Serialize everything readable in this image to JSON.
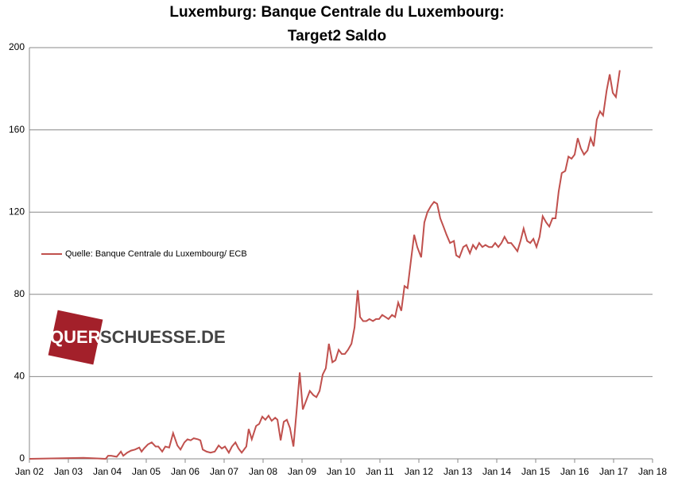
{
  "chart_data": {
    "type": "line",
    "title": "Luxemburg: Banque Centrale du Luxembourg:",
    "subtitle": "Target2 Saldo",
    "watermark": [
      "QUER",
      "SCHUESSE.DE"
    ],
    "xlim": [
      2002,
      2018
    ],
    "xticks": [
      {
        "value": 2002,
        "label": "Jan 02"
      },
      {
        "value": 2003,
        "label": "Jan 03"
      },
      {
        "value": 2004,
        "label": "Jan 04"
      },
      {
        "value": 2005,
        "label": "Jan 05"
      },
      {
        "value": 2006,
        "label": "Jan 06"
      },
      {
        "value": 2007,
        "label": "Jan 07"
      },
      {
        "value": 2008,
        "label": "Jan 08"
      },
      {
        "value": 2009,
        "label": "Jan 09"
      },
      {
        "value": 2010,
        "label": "Jan 10"
      },
      {
        "value": 2011,
        "label": "Jan 11"
      },
      {
        "value": 2012,
        "label": "Jan 12"
      },
      {
        "value": 2013,
        "label": "Jan 13"
      },
      {
        "value": 2014,
        "label": "Jan 14"
      },
      {
        "value": 2015,
        "label": "Jan 15"
      },
      {
        "value": 2016,
        "label": "Jan 16"
      },
      {
        "value": 2017,
        "label": "Jan 17"
      },
      {
        "value": 2018,
        "label": "Jan 18"
      }
    ],
    "ylim": [
      0,
      200
    ],
    "yticks": [
      0,
      40,
      80,
      120,
      160,
      200
    ],
    "grid": true,
    "legend": "left",
    "x": [
      2002.0,
      2003.39,
      2003.96,
      2004.02,
      2004.1,
      2004.24,
      2004.35,
      2004.41,
      2004.51,
      2004.61,
      2004.71,
      2004.82,
      2004.88,
      2004.94,
      2005.04,
      2005.14,
      2005.24,
      2005.31,
      2005.41,
      2005.49,
      2005.59,
      2005.69,
      2005.8,
      2005.88,
      2005.98,
      2006.06,
      2006.14,
      2006.22,
      2006.33,
      2006.39,
      2006.45,
      2006.55,
      2006.65,
      2006.76,
      2006.86,
      2006.94,
      2007.02,
      2007.12,
      2007.2,
      2007.29,
      2007.37,
      2007.45,
      2007.57,
      2007.63,
      2007.71,
      2007.82,
      2007.9,
      2007.98,
      2008.06,
      2008.14,
      2008.22,
      2008.31,
      2008.37,
      2008.45,
      2008.53,
      2008.61,
      2008.69,
      2008.78,
      2008.86,
      2008.94,
      2009.02,
      2009.1,
      2009.2,
      2009.29,
      2009.37,
      2009.45,
      2009.53,
      2009.61,
      2009.69,
      2009.78,
      2009.86,
      2009.94,
      2010.02,
      2010.1,
      2010.18,
      2010.27,
      2010.35,
      2010.43,
      2010.49,
      2010.57,
      2010.65,
      2010.73,
      2010.82,
      2010.9,
      2010.98,
      2011.06,
      2011.14,
      2011.22,
      2011.31,
      2011.39,
      2011.47,
      2011.55,
      2011.63,
      2011.71,
      2011.8,
      2011.88,
      2011.96,
      2012.06,
      2012.14,
      2012.22,
      2012.31,
      2012.39,
      2012.47,
      2012.55,
      2012.63,
      2012.71,
      2012.8,
      2012.9,
      2012.96,
      2013.04,
      2013.14,
      2013.22,
      2013.31,
      2013.39,
      2013.47,
      2013.55,
      2013.63,
      2013.71,
      2013.8,
      2013.88,
      2013.96,
      2014.04,
      2014.12,
      2014.2,
      2014.29,
      2014.37,
      2014.45,
      2014.53,
      2014.61,
      2014.69,
      2014.78,
      2014.86,
      2014.94,
      2015.02,
      2015.1,
      2015.18,
      2015.27,
      2015.35,
      2015.43,
      2015.51,
      2015.59,
      2015.67,
      2015.76,
      2015.84,
      2015.92,
      2016.0,
      2016.08,
      2016.16,
      2016.24,
      2016.33,
      2016.41,
      2016.49,
      2016.57,
      2016.65,
      2016.73,
      2016.82,
      2016.9,
      2016.98,
      2017.06,
      2017.16
    ],
    "series": [
      {
        "name": "Quelle: Banque Centrale du Luxembourg/ ECB",
        "color": "#c0504d",
        "values": [
          0,
          0.5,
          0,
          1.5,
          1.5,
          1,
          3.5,
          1.5,
          3,
          4,
          4.5,
          5.5,
          3.5,
          5,
          7,
          8,
          6,
          6,
          3.5,
          6,
          5.5,
          12.5,
          6.5,
          4.5,
          8,
          9.5,
          9,
          10,
          9.5,
          9,
          4.5,
          3.5,
          3,
          3.5,
          6.5,
          5,
          6,
          3,
          6,
          8,
          5,
          3,
          6,
          14.5,
          9.5,
          16,
          17,
          20.5,
          19,
          21,
          18.5,
          20,
          19,
          9,
          18,
          19,
          15,
          6,
          23,
          42,
          24,
          28,
          33,
          31,
          30,
          33,
          41,
          44,
          56,
          47,
          48,
          53,
          51,
          51,
          53,
          56,
          64,
          82,
          69,
          67,
          67,
          68,
          67,
          68,
          68,
          70,
          69,
          68,
          70,
          69,
          76,
          72,
          84,
          83,
          97,
          109,
          103,
          98,
          115,
          120,
          123,
          125,
          124,
          117,
          113,
          109,
          105,
          106,
          99,
          98,
          103,
          104,
          100,
          104,
          102,
          105,
          103,
          104,
          103,
          103,
          105,
          103,
          105,
          108,
          105,
          105,
          103,
          101,
          106,
          112,
          106,
          105,
          107,
          103,
          108,
          118,
          115,
          113,
          117,
          117,
          130,
          139,
          140,
          147,
          146,
          148,
          156,
          151,
          148,
          150,
          156,
          152,
          165,
          169,
          167,
          179,
          187,
          178,
          176,
          189
        ]
      }
    ]
  }
}
